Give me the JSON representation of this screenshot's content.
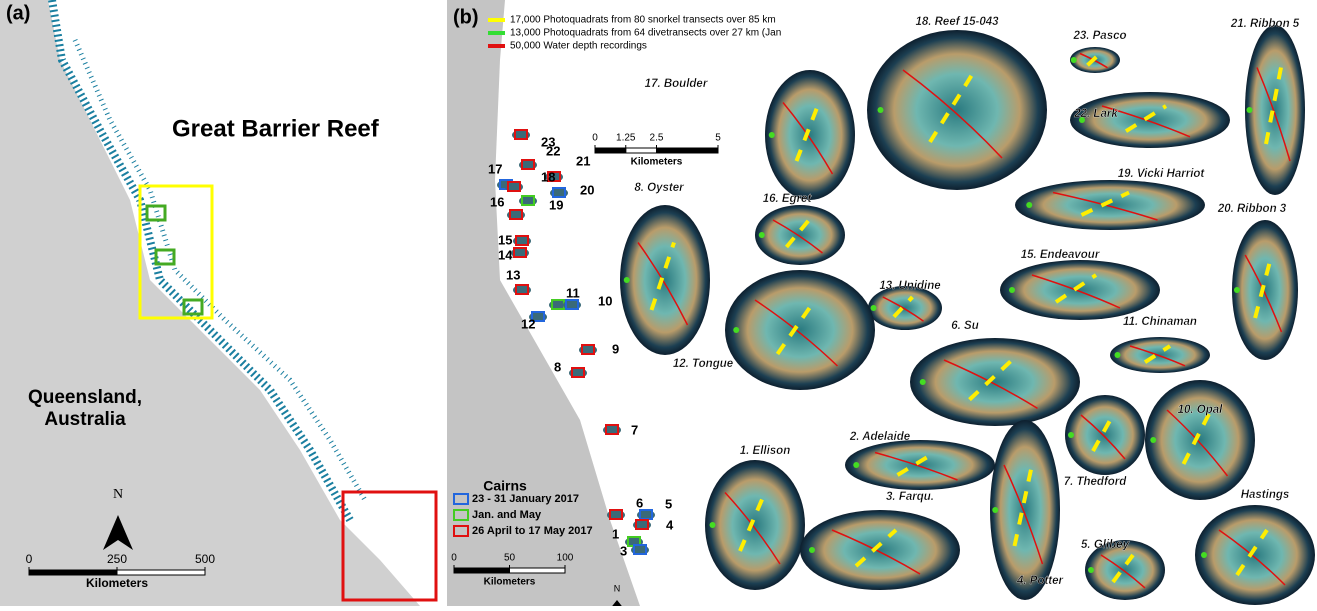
{
  "panel_a": {
    "tag": "(a)",
    "title": "Great Barrier Reef",
    "region": [
      "Queensland,",
      "Australia"
    ],
    "north": "N",
    "scale": {
      "unit": "Kilometers",
      "ticks": [
        0,
        250,
        500
      ]
    }
  },
  "panel_b": {
    "tag": "(b)",
    "legend": [
      {
        "text": "17,000 Photoquadrats from 80 snorkel transects over 85 km",
        "color": "#ffff00"
      },
      {
        "text": "13,000 Photoquadrats from 64 divetransects over 27 km (Jan",
        "color": "#33dd33"
      },
      {
        "text": "50,000 Water depth recordings",
        "color": "#e01010"
      }
    ],
    "reef_scale": {
      "unit": "Kilometers",
      "ticks": [
        0,
        1.25,
        2.5,
        5
      ]
    },
    "survey_legend": {
      "title": "Cairns",
      "items": [
        {
          "text": "23 - 31 January 2017",
          "color": "#2266dd"
        },
        {
          "text": "Jan. and May",
          "color": "#44cc22"
        },
        {
          "text": "26 April to 17 May 2017",
          "color": "#e01010"
        }
      ]
    },
    "overview_scale": {
      "unit": "Kilometers",
      "ticks": [
        0,
        50,
        100
      ]
    },
    "north": "N",
    "markers": [
      {
        "label": "23",
        "color": "#e01010"
      },
      {
        "label": "22",
        "color": "#e01010"
      },
      {
        "label": "21",
        "color": "#e01010"
      },
      {
        "label": "20",
        "color": "#2266dd"
      },
      {
        "label": "17",
        "color": "#2266dd"
      },
      {
        "label": "18",
        "color": "#e01010"
      },
      {
        "label": "19",
        "color": "#44cc22"
      },
      {
        "label": "16",
        "color": "#e01010"
      },
      {
        "label": "15",
        "color": "#e01010"
      },
      {
        "label": "14",
        "color": "#e01010"
      },
      {
        "label": "13",
        "color": "#e01010"
      },
      {
        "label": "11",
        "color": "#44cc22"
      },
      {
        "label": "10",
        "color": "#2266dd"
      },
      {
        "label": "12",
        "color": "#2266dd"
      },
      {
        "label": "9",
        "color": "#e01010"
      },
      {
        "label": "8",
        "color": "#e01010"
      },
      {
        "label": "7",
        "color": "#e01010"
      },
      {
        "label": "6",
        "color": "#e01010"
      },
      {
        "label": "5",
        "color": "#2266dd"
      },
      {
        "label": "4",
        "color": "#e01010"
      },
      {
        "label": "1",
        "color": "#44cc22"
      },
      {
        "label": "3",
        "color": "#2266dd"
      }
    ],
    "reefs": [
      "17. Boulder",
      "18. Reef 15-043",
      "23. Pasco",
      "21. Ribbon 5",
      "22. Lark",
      "19. Vicki Harriot",
      "20. Ribbon 3",
      "8. Oyster",
      "16. Egret",
      "15. Endeavour",
      "13. Unidine",
      "6. Su",
      "11. Chinaman",
      "12. Tongue",
      "10. Opal",
      "1. Ellison",
      "2. Adelaide",
      "3. Farqu.",
      "7. Thedford",
      "5. Glibey",
      "4. Potter",
      "Hastings"
    ]
  }
}
